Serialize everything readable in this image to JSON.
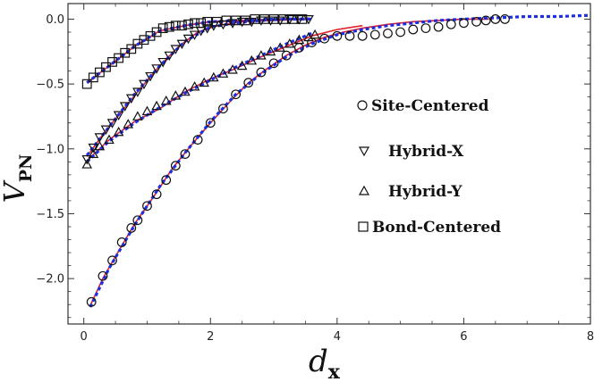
{
  "chart_data": {
    "type": "scatter",
    "xlabel": {
      "main": "d",
      "sub": "x"
    },
    "ylabel": {
      "main": "V",
      "sub": "PN"
    },
    "xlim": [
      -0.25,
      8.0
    ],
    "ylim": [
      -2.35,
      0.12
    ],
    "x_ticks": [
      0,
      2,
      4,
      6,
      8
    ],
    "y_ticks": [
      0.0,
      -0.5,
      -1.0,
      -1.5,
      -2.0
    ],
    "x_tick_labels": [
      "0",
      "2",
      "4",
      "6",
      "8"
    ],
    "y_tick_labels": [
      "0.0",
      "−0.5",
      "−1.0",
      "−1.5",
      "−2.0"
    ],
    "legend_position": "right-center",
    "colors": {
      "fit_red": "#e0202a",
      "fit_blue": "#1f2fe0",
      "marker": "#111111"
    },
    "series": [
      {
        "name": "Site-Centered",
        "marker": "circle",
        "points": [
          [
            0.12,
            -2.18
          ],
          [
            0.3,
            -1.98
          ],
          [
            0.45,
            -1.86
          ],
          [
            0.6,
            -1.72
          ],
          [
            0.75,
            -1.61
          ],
          [
            0.85,
            -1.55
          ],
          [
            1.0,
            -1.44
          ],
          [
            1.15,
            -1.35
          ],
          [
            1.3,
            -1.24
          ],
          [
            1.45,
            -1.13
          ],
          [
            1.6,
            -1.04
          ],
          [
            1.8,
            -0.93
          ],
          [
            2.0,
            -0.8
          ],
          [
            2.2,
            -0.69
          ],
          [
            2.4,
            -0.58
          ],
          [
            2.6,
            -0.49
          ],
          [
            2.8,
            -0.41
          ],
          [
            3.0,
            -0.34
          ],
          [
            3.2,
            -0.28
          ],
          [
            3.4,
            -0.22
          ],
          [
            3.6,
            -0.18
          ],
          [
            3.8,
            -0.15
          ],
          [
            4.0,
            -0.13
          ],
          [
            4.2,
            -0.13
          ],
          [
            4.4,
            -0.13
          ],
          [
            4.6,
            -0.12
          ],
          [
            4.8,
            -0.11
          ],
          [
            5.0,
            -0.1
          ],
          [
            5.2,
            -0.08
          ],
          [
            5.4,
            -0.07
          ],
          [
            5.6,
            -0.06
          ],
          [
            5.8,
            -0.04
          ],
          [
            6.0,
            -0.03
          ],
          [
            6.2,
            -0.02
          ],
          [
            6.35,
            -0.01
          ],
          [
            6.5,
            0.0
          ],
          [
            6.65,
            0.0
          ]
        ]
      },
      {
        "name": "Hybrid-X",
        "marker": "triangle-down",
        "points": [
          [
            0.05,
            -1.08
          ],
          [
            0.15,
            -0.99
          ],
          [
            0.25,
            -0.91
          ],
          [
            0.35,
            -0.85
          ],
          [
            0.45,
            -0.8
          ],
          [
            0.55,
            -0.74
          ],
          [
            0.65,
            -0.67
          ],
          [
            0.75,
            -0.61
          ],
          [
            0.85,
            -0.56
          ],
          [
            0.95,
            -0.5
          ],
          [
            1.05,
            -0.44
          ],
          [
            1.15,
            -0.38
          ],
          [
            1.25,
            -0.33
          ],
          [
            1.35,
            -0.28
          ],
          [
            1.45,
            -0.23
          ],
          [
            1.55,
            -0.19
          ],
          [
            1.65,
            -0.15
          ],
          [
            1.75,
            -0.12
          ],
          [
            1.85,
            -0.09
          ],
          [
            1.95,
            -0.07
          ],
          [
            2.05,
            -0.05
          ],
          [
            2.2,
            -0.04
          ],
          [
            2.35,
            -0.03
          ],
          [
            2.5,
            -0.02
          ],
          [
            2.65,
            -0.02
          ],
          [
            2.8,
            -0.01
          ],
          [
            2.95,
            -0.01
          ],
          [
            3.1,
            -0.01
          ],
          [
            3.25,
            0.0
          ],
          [
            3.4,
            0.0
          ],
          [
            3.55,
            0.0
          ]
        ]
      },
      {
        "name": "Hybrid-Y",
        "marker": "triangle-up",
        "points": [
          [
            0.05,
            -1.12
          ],
          [
            0.15,
            -1.04
          ],
          [
            0.25,
            -0.98
          ],
          [
            0.4,
            -0.93
          ],
          [
            0.55,
            -0.87
          ],
          [
            0.7,
            -0.81
          ],
          [
            0.85,
            -0.75
          ],
          [
            1.0,
            -0.71
          ],
          [
            1.15,
            -0.67
          ],
          [
            1.3,
            -0.63
          ],
          [
            1.45,
            -0.59
          ],
          [
            1.6,
            -0.56
          ],
          [
            1.75,
            -0.52
          ],
          [
            1.9,
            -0.49
          ],
          [
            2.05,
            -0.45
          ],
          [
            2.2,
            -0.42
          ],
          [
            2.35,
            -0.39
          ],
          [
            2.5,
            -0.36
          ],
          [
            2.65,
            -0.32
          ],
          [
            2.8,
            -0.28
          ],
          [
            2.95,
            -0.25
          ],
          [
            3.1,
            -0.22
          ],
          [
            3.25,
            -0.19
          ],
          [
            3.4,
            -0.16
          ],
          [
            3.55,
            -0.14
          ],
          [
            3.65,
            -0.12
          ]
        ]
      },
      {
        "name": "Bond-Centered",
        "marker": "square",
        "points": [
          [
            0.05,
            -0.5
          ],
          [
            0.15,
            -0.45
          ],
          [
            0.25,
            -0.41
          ],
          [
            0.35,
            -0.37
          ],
          [
            0.45,
            -0.33
          ],
          [
            0.55,
            -0.3
          ],
          [
            0.65,
            -0.26
          ],
          [
            0.75,
            -0.23
          ],
          [
            0.85,
            -0.19
          ],
          [
            0.95,
            -0.16
          ],
          [
            1.05,
            -0.13
          ],
          [
            1.15,
            -0.1
          ],
          [
            1.25,
            -0.07
          ],
          [
            1.35,
            -0.06
          ],
          [
            1.45,
            -0.05
          ],
          [
            1.55,
            -0.05
          ],
          [
            1.65,
            -0.04
          ],
          [
            1.75,
            -0.03
          ],
          [
            1.85,
            -0.03
          ],
          [
            1.95,
            -0.02
          ],
          [
            2.1,
            -0.02
          ],
          [
            2.25,
            -0.01
          ],
          [
            2.4,
            -0.01
          ],
          [
            2.55,
            -0.01
          ],
          [
            2.7,
            0.0
          ],
          [
            2.85,
            0.0
          ],
          [
            3.0,
            0.0
          ],
          [
            3.15,
            0.0
          ],
          [
            3.3,
            0.0
          ],
          [
            3.45,
            0.0
          ]
        ]
      }
    ],
    "fits_red": [
      [
        [
          0.1,
          -2.21
        ],
        [
          0.3,
          -2.0
        ],
        [
          0.5,
          -1.83
        ],
        [
          0.8,
          -1.58
        ],
        [
          1.1,
          -1.37
        ],
        [
          1.4,
          -1.15
        ],
        [
          1.7,
          -0.97
        ],
        [
          2.0,
          -0.8
        ],
        [
          2.3,
          -0.64
        ],
        [
          2.6,
          -0.49
        ],
        [
          2.9,
          -0.38
        ],
        [
          3.2,
          -0.28
        ],
        [
          3.5,
          -0.2
        ],
        [
          3.8,
          -0.14
        ],
        [
          4.1,
          -0.1
        ],
        [
          4.4,
          -0.07
        ],
        [
          4.8,
          -0.04
        ],
        [
          5.2,
          -0.02
        ],
        [
          5.6,
          -0.01
        ],
        [
          6.0,
          0.0
        ],
        [
          6.4,
          0.0
        ]
      ],
      [
        [
          0.05,
          -1.06
        ],
        [
          0.3,
          -0.89
        ],
        [
          0.6,
          -0.71
        ],
        [
          0.9,
          -0.53
        ],
        [
          1.2,
          -0.36
        ],
        [
          1.5,
          -0.21
        ],
        [
          1.8,
          -0.1
        ],
        [
          2.1,
          -0.05
        ],
        [
          2.5,
          -0.02
        ],
        [
          3.0,
          -0.01
        ],
        [
          3.55,
          0.0
        ]
      ],
      [
        [
          0.05,
          -1.09
        ],
        [
          0.4,
          -0.93
        ],
        [
          0.8,
          -0.79
        ],
        [
          1.2,
          -0.69
        ],
        [
          1.6,
          -0.56
        ],
        [
          2.0,
          -0.46
        ],
        [
          2.4,
          -0.38
        ],
        [
          2.8,
          -0.29
        ],
        [
          3.2,
          -0.21
        ],
        [
          3.6,
          -0.13
        ],
        [
          4.0,
          -0.08
        ],
        [
          4.4,
          -0.05
        ]
      ],
      [
        [
          0.05,
          -0.49
        ],
        [
          0.4,
          -0.36
        ],
        [
          0.8,
          -0.21
        ],
        [
          1.2,
          -0.09
        ],
        [
          1.6,
          -0.05
        ],
        [
          2.0,
          -0.02
        ],
        [
          2.5,
          -0.01
        ],
        [
          3.0,
          0.0
        ],
        [
          3.5,
          0.0
        ]
      ]
    ],
    "fits_blue": [
      [
        [
          0.1,
          -2.22
        ],
        [
          0.4,
          -1.92
        ],
        [
          0.8,
          -1.59
        ],
        [
          1.2,
          -1.29
        ],
        [
          1.6,
          -1.03
        ],
        [
          2.0,
          -0.79
        ],
        [
          2.4,
          -0.58
        ],
        [
          2.8,
          -0.42
        ],
        [
          3.2,
          -0.29
        ],
        [
          3.6,
          -0.19
        ],
        [
          4.0,
          -0.12
        ],
        [
          4.4,
          -0.08
        ],
        [
          4.8,
          -0.05
        ],
        [
          5.2,
          -0.03
        ],
        [
          5.6,
          -0.01
        ],
        [
          6.0,
          0.0
        ],
        [
          6.5,
          0.01
        ],
        [
          7.0,
          0.02
        ],
        [
          7.5,
          0.02
        ],
        [
          8.0,
          0.03
        ]
      ],
      [
        [
          0.05,
          -1.05
        ],
        [
          0.4,
          -0.83
        ],
        [
          0.8,
          -0.58
        ],
        [
          1.2,
          -0.36
        ],
        [
          1.6,
          -0.17
        ],
        [
          2.0,
          -0.06
        ],
        [
          2.4,
          -0.03
        ],
        [
          2.8,
          -0.01
        ],
        [
          3.2,
          0.0
        ],
        [
          3.6,
          0.0
        ]
      ],
      [
        [
          0.05,
          -1.1
        ],
        [
          0.4,
          -0.94
        ],
        [
          0.8,
          -0.8
        ],
        [
          1.2,
          -0.68
        ],
        [
          1.6,
          -0.57
        ],
        [
          2.0,
          -0.47
        ],
        [
          2.4,
          -0.37
        ],
        [
          2.8,
          -0.28
        ],
        [
          3.2,
          -0.19
        ],
        [
          3.6,
          -0.11
        ]
      ],
      [
        [
          0.05,
          -0.49
        ],
        [
          0.4,
          -0.36
        ],
        [
          0.8,
          -0.21
        ],
        [
          1.2,
          -0.09
        ],
        [
          1.6,
          -0.05
        ],
        [
          2.0,
          -0.02
        ],
        [
          2.5,
          -0.01
        ],
        [
          3.0,
          0.0
        ],
        [
          3.6,
          0.0
        ]
      ]
    ]
  }
}
